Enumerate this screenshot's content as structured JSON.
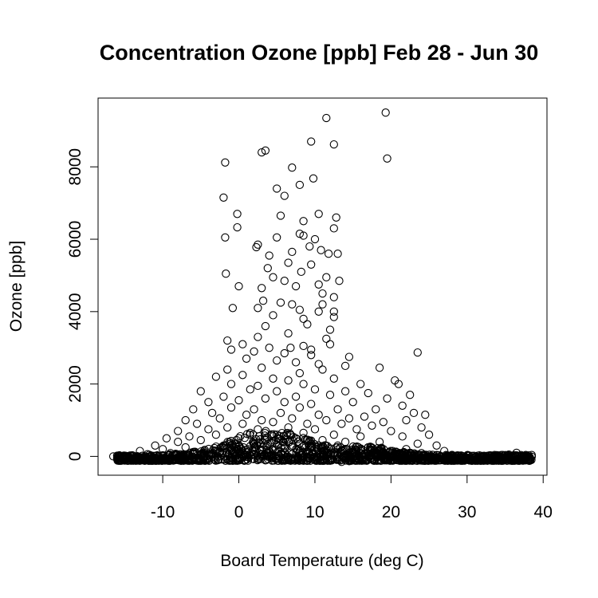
{
  "chart_data": {
    "type": "scatter",
    "title": "Concentration Ozone [ppb] Feb 28 - Jun 30",
    "xlabel": "Board Temperature (deg C)",
    "ylabel": "Ozone [ppb]",
    "xlim": [
      -18.5,
      40.5
    ],
    "ylim": [
      -520,
      9900
    ],
    "xticks": [
      -10,
      0,
      10,
      20,
      30,
      40
    ],
    "xtick_labels": [
      "-10",
      "0",
      "10",
      "20",
      "30",
      "40"
    ],
    "yticks": [
      0,
      2000,
      4000,
      6000,
      8000
    ],
    "ytick_labels": [
      "0",
      "2000",
      "4000",
      "6000",
      "8000"
    ],
    "grid": false,
    "legend": "none",
    "series": [
      {
        "points": [
          [
            19.3,
            9500
          ],
          [
            11.5,
            9350
          ],
          [
            19.5,
            8230
          ],
          [
            9.5,
            8700
          ],
          [
            12.5,
            8620
          ],
          [
            3.0,
            8400
          ],
          [
            3.5,
            8450
          ],
          [
            -1.8,
            8120
          ],
          [
            7.0,
            7980
          ],
          [
            9.8,
            7680
          ],
          [
            8.0,
            7500
          ],
          [
            5.0,
            7400
          ],
          [
            -2.0,
            7150
          ],
          [
            6.0,
            7200
          ],
          [
            10.5,
            6700
          ],
          [
            -0.2,
            6700
          ],
          [
            5.5,
            6650
          ],
          [
            12.8,
            6600
          ],
          [
            8.5,
            6500
          ],
          [
            -0.2,
            6330
          ],
          [
            12.5,
            6300
          ],
          [
            5.0,
            6050
          ],
          [
            -1.8,
            6050
          ],
          [
            10.0,
            6000
          ],
          [
            8.5,
            6100
          ],
          [
            8.0,
            6150
          ],
          [
            2.5,
            5850
          ],
          [
            2.3,
            5780
          ],
          [
            9.3,
            5800
          ],
          [
            7.0,
            5650
          ],
          [
            11.8,
            5600
          ],
          [
            13.0,
            5600
          ],
          [
            4.0,
            5550
          ],
          [
            6.5,
            5350
          ],
          [
            9.5,
            5300
          ],
          [
            8.2,
            5100
          ],
          [
            -1.7,
            5050
          ],
          [
            4.5,
            4950
          ],
          [
            6.0,
            4850
          ],
          [
            11.5,
            4950
          ],
          [
            10.5,
            4750
          ],
          [
            13.2,
            4850
          ],
          [
            0.0,
            4700
          ],
          [
            3.0,
            4650
          ],
          [
            7.5,
            4700
          ],
          [
            11.0,
            4500
          ],
          [
            12.5,
            4400
          ],
          [
            3.2,
            4300
          ],
          [
            5.5,
            4250
          ],
          [
            11.0,
            4200
          ],
          [
            -0.8,
            4100
          ],
          [
            2.5,
            4100
          ],
          [
            8.0,
            4050
          ],
          [
            10.5,
            4000
          ],
          [
            12.5,
            4000
          ],
          [
            4.5,
            3900
          ],
          [
            8.5,
            3800
          ],
          [
            9.0,
            3650
          ],
          [
            12.5,
            3850
          ],
          [
            3.5,
            3600
          ],
          [
            12.0,
            3500
          ],
          [
            2.5,
            3300
          ],
          [
            6.5,
            3400
          ],
          [
            11.5,
            3250
          ],
          [
            -1.5,
            3200
          ],
          [
            0.5,
            3100
          ],
          [
            4.0,
            3000
          ],
          [
            8.5,
            3050
          ],
          [
            12.0,
            3100
          ],
          [
            -1.0,
            2950
          ],
          [
            2.0,
            2900
          ],
          [
            6.0,
            2850
          ],
          [
            9.5,
            2800
          ],
          [
            14.5,
            2750
          ],
          [
            23.5,
            2870
          ],
          [
            1.0,
            2700
          ],
          [
            5.0,
            2650
          ],
          [
            7.5,
            2600
          ],
          [
            10.5,
            2550
          ],
          [
            14.0,
            2500
          ],
          [
            -1.5,
            2400
          ],
          [
            3.0,
            2450
          ],
          [
            8.0,
            2300
          ],
          [
            11.0,
            2400
          ],
          [
            18.5,
            2450
          ],
          [
            -3.0,
            2200
          ],
          [
            0.5,
            2250
          ],
          [
            4.5,
            2150
          ],
          [
            6.5,
            2100
          ],
          [
            12.5,
            2150
          ],
          [
            20.5,
            2100
          ],
          [
            -1.0,
            2000
          ],
          [
            2.5,
            1950
          ],
          [
            8.5,
            2000
          ],
          [
            16.0,
            2000
          ],
          [
            21.0,
            2000
          ],
          [
            -5.0,
            1800
          ],
          [
            1.5,
            1850
          ],
          [
            5.0,
            1800
          ],
          [
            10.0,
            1850
          ],
          [
            14.0,
            1800
          ],
          [
            17.0,
            1750
          ],
          [
            22.5,
            1700
          ],
          [
            -2.0,
            1650
          ],
          [
            3.5,
            1600
          ],
          [
            7.5,
            1650
          ],
          [
            12.0,
            1700
          ],
          [
            19.5,
            1600
          ],
          [
            -4.0,
            1500
          ],
          [
            0.0,
            1550
          ],
          [
            6.0,
            1500
          ],
          [
            9.5,
            1450
          ],
          [
            15.0,
            1500
          ],
          [
            21.5,
            1400
          ],
          [
            -6.0,
            1300
          ],
          [
            -1.0,
            1350
          ],
          [
            2.0,
            1300
          ],
          [
            8.0,
            1350
          ],
          [
            13.0,
            1300
          ],
          [
            18.0,
            1300
          ],
          [
            23.0,
            1200
          ],
          [
            -3.5,
            1200
          ],
          [
            1.0,
            1150
          ],
          [
            5.5,
            1200
          ],
          [
            10.5,
            1150
          ],
          [
            16.5,
            1100
          ],
          [
            24.5,
            1150
          ],
          [
            -7.0,
            1000
          ],
          [
            -2.5,
            1050
          ],
          [
            3.0,
            1000
          ],
          [
            7.0,
            1050
          ],
          [
            11.5,
            1000
          ],
          [
            14.5,
            1050
          ],
          [
            19.0,
            950
          ],
          [
            22.0,
            1000
          ],
          [
            -5.5,
            900
          ],
          [
            0.5,
            900
          ],
          [
            4.5,
            950
          ],
          [
            9.0,
            900
          ],
          [
            13.5,
            900
          ],
          [
            17.5,
            850
          ],
          [
            24.0,
            800
          ],
          [
            -8.0,
            700
          ],
          [
            -4.0,
            750
          ],
          [
            -1.5,
            800
          ],
          [
            2.5,
            750
          ],
          [
            6.5,
            800
          ],
          [
            10.0,
            750
          ],
          [
            15.5,
            750
          ],
          [
            20.0,
            700
          ],
          [
            25.0,
            600
          ],
          [
            -9.5,
            500
          ],
          [
            -6.5,
            550
          ],
          [
            -3.0,
            600
          ],
          [
            1.5,
            650
          ],
          [
            5.0,
            600
          ],
          [
            8.5,
            650
          ],
          [
            12.5,
            600
          ],
          [
            16.0,
            550
          ],
          [
            21.5,
            550
          ],
          [
            -11.0,
            300
          ],
          [
            -8.0,
            400
          ],
          [
            -5.0,
            450
          ],
          [
            0.0,
            500
          ],
          [
            3.5,
            450
          ],
          [
            7.5,
            500
          ],
          [
            11.0,
            450
          ],
          [
            14.0,
            400
          ],
          [
            18.5,
            400
          ],
          [
            23.5,
            350
          ],
          [
            26.0,
            300
          ],
          [
            -13.0,
            150
          ],
          [
            -10.0,
            200
          ],
          [
            -7.0,
            250
          ],
          [
            -2.0,
            300
          ],
          [
            2.0,
            350
          ],
          [
            6.0,
            300
          ],
          [
            9.5,
            350
          ],
          [
            13.0,
            300
          ],
          [
            17.0,
            250
          ],
          [
            22.0,
            200
          ],
          [
            27.0,
            150
          ],
          [
            -16.5,
            0
          ],
          [
            -15.0,
            20
          ],
          [
            -14.0,
            30
          ],
          [
            -12.0,
            60
          ],
          [
            -9.0,
            90
          ],
          [
            -6.0,
            120
          ],
          [
            -3.0,
            150
          ],
          [
            1.0,
            180
          ],
          [
            4.5,
            200
          ],
          [
            8.0,
            150
          ],
          [
            11.5,
            180
          ],
          [
            15.0,
            140
          ],
          [
            19.0,
            120
          ],
          [
            24.0,
            90
          ],
          [
            28.0,
            40
          ],
          [
            30.0,
            20
          ],
          [
            32.0,
            10
          ],
          [
            34.0,
            30
          ],
          [
            35.5,
            50
          ],
          [
            36.5,
            100
          ],
          [
            37.5,
            20
          ],
          [
            38.0,
            0
          ],
          [
            38.5,
            -10
          ],
          [
            12.0,
            -120
          ],
          [
            13.5,
            -150
          ],
          [
            14.5,
            -130
          ],
          [
            27.0,
            -100
          ],
          [
            22.0,
            -80
          ],
          [
            9.5,
            2950
          ],
          [
            7.0,
            4200
          ],
          [
            3.8,
            5200
          ],
          [
            10.8,
            5700
          ],
          [
            6.8,
            3000
          ]
        ]
      }
    ]
  }
}
